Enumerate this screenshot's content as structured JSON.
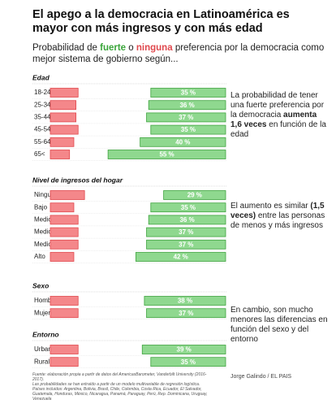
{
  "chart_data": {
    "type": "diverging-bar",
    "title": "El apego a la democracia en Latinoamérica es mayor con más ingresos y con más edad",
    "subtitle_parts": [
      "Probabilidad de",
      "o",
      "preferencia por la democracia como mejor sistema de gobierno según..."
    ],
    "xlim": [
      0,
      82
    ],
    "groups": [
      {
        "name": "Edad",
        "categories": [
          "18-24",
          "25-34",
          "35-44",
          "45-54",
          "55-64",
          "65<"
        ],
        "series": [
          {
            "name": "ninguna",
            "color": "#f4878a",
            "values": [
              13,
              12,
              12,
              13,
              11,
              9
            ]
          },
          {
            "name": "fuerte",
            "color": "#8fd88f",
            "values": [
              35,
              36,
              37,
              35,
              40,
              55
            ],
            "value_labels": [
              "35 %",
              "36 %",
              "37 %",
              "35 %",
              "40 %",
              "55 %"
            ]
          }
        ],
        "annotation": [
          {
            "text": "La probabilidad de tener una fuerte preferencia por la democracia ",
            "bold": false
          },
          {
            "text": "aumenta 1,6 veces",
            "bold": true
          },
          {
            "text": " en función de la edad",
            "bold": false
          }
        ]
      },
      {
        "name": "Nivel de ingresos del hogar",
        "categories": [
          "Ninguno",
          "Bajo",
          "Medio-bajo",
          "Medio",
          "Medio-alto",
          "Alto"
        ],
        "series": [
          {
            "name": "ninguna",
            "color": "#f4878a",
            "values": [
              16,
              11,
              13,
              13,
              13,
              11
            ]
          },
          {
            "name": "fuerte",
            "color": "#8fd88f",
            "values": [
              29,
              35,
              36,
              37,
              37,
              42
            ],
            "value_labels": [
              "29 %",
              "35 %",
              "36 %",
              "37 %",
              "37 %",
              "42 %"
            ]
          }
        ],
        "annotation": [
          {
            "text": "El aumento es similar ",
            "bold": false
          },
          {
            "text": "(1,5 veces)",
            "bold": true
          },
          {
            "text": " entre las personas de menos y más ingresos",
            "bold": false
          }
        ]
      },
      {
        "name": "Sexo",
        "categories": [
          "Hombre",
          "Mujer"
        ],
        "series": [
          {
            "name": "ninguna",
            "color": "#f4878a",
            "values": [
              13,
              13
            ]
          },
          {
            "name": "fuerte",
            "color": "#8fd88f",
            "values": [
              38,
              37
            ],
            "value_labels": [
              "38 %",
              "37 %"
            ]
          }
        ],
        "annotation": [
          {
            "text": "En cambio, son mucho menores las diferencias en función del sexo y del entorno",
            "bold": false
          }
        ]
      },
      {
        "name": "Entorno",
        "categories": [
          "Urbano",
          "Rural"
        ],
        "series": [
          {
            "name": "ninguna",
            "color": "#f4878a",
            "values": [
              13,
              13
            ]
          },
          {
            "name": "fuerte",
            "color": "#8fd88f",
            "values": [
              39,
              35
            ],
            "value_labels": [
              "39 %",
              "35 %"
            ]
          }
        ]
      }
    ],
    "notes": [
      "Fuente: elaboración propia a partir de datos del AmericasBarometer, Vanderbilt University (2016-2017).",
      "Las probabilidades se han extraído a partir de un modelo multivariable de regresión logística.",
      "Países incluidos: Argentina, Bolivia, Brasil, Chile, Colombia, Costa Rica, Ecuador, El Salvador, Guatemala, Honduras, México, Nicaragua, Panamá, Paraguay, Perú, Rep. Dominicana, Uruguay, Venezuela"
    ],
    "credit": "Jorge Galindo / EL PAIS"
  }
}
